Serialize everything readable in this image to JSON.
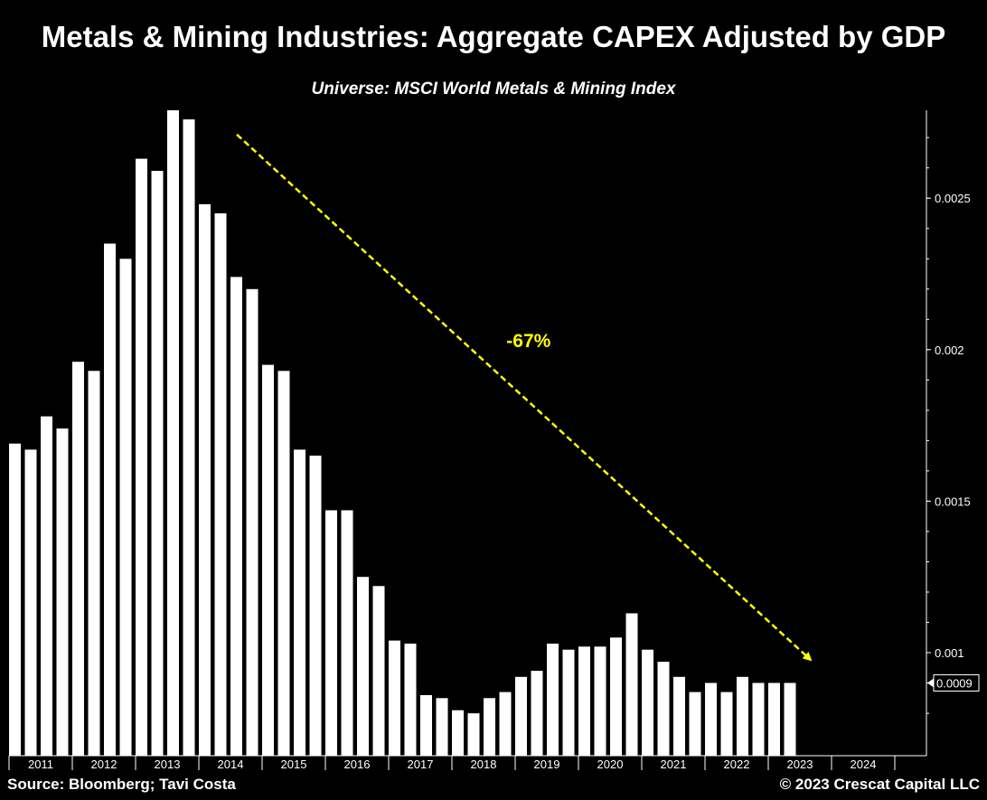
{
  "title": "Metals & Mining Industries: Aggregate CAPEX Adjusted by GDP",
  "subtitle": "Universe: MSCI World Metals & Mining Index",
  "footer": {
    "source": "Source: Bloomberg; Tavi Costa",
    "copyright": "© 2023 Crescat Capital LLC"
  },
  "colors": {
    "background": "#000000",
    "bars": "#ffffff",
    "axis": "#ffffff",
    "trend_arrow": "#ffff00",
    "annotation": "#ffff00"
  },
  "chart_data": {
    "type": "bar",
    "title": "Metals & Mining Industries: Aggregate CAPEX Adjusted by GDP",
    "subtitle": "Universe: MSCI World Metals & Mining Index",
    "frequency": "quarterly",
    "x_axis": {
      "ticks": [
        "2011",
        "2012",
        "2013",
        "2014",
        "2015",
        "2016",
        "2017",
        "2018",
        "2019",
        "2020",
        "2021",
        "2022",
        "2023",
        "2024"
      ]
    },
    "y_axis": {
      "side": "right",
      "ticks": [
        0.001,
        0.0015,
        0.002,
        0.0025
      ],
      "tick_labels": [
        "0.001",
        "0.0015",
        "0.002",
        "0.0025"
      ],
      "ylim": [
        0.00066,
        0.00279
      ]
    },
    "current_value_label": "0.0009",
    "current_value": 0.0009,
    "grid": false,
    "series": [
      {
        "values": [
          0.00169,
          0.00167,
          0.00178,
          0.00174,
          0.00196,
          0.00193,
          0.00235,
          0.0023,
          0.00263,
          0.00259,
          0.00279,
          0.00276,
          0.00248,
          0.00245,
          0.00224,
          0.0022,
          0.00195,
          0.00193,
          0.00167,
          0.00165,
          0.00147,
          0.00147,
          0.00125,
          0.00122,
          0.00104,
          0.00103,
          0.00086,
          0.00085,
          0.00081,
          0.0008,
          0.00085,
          0.00087,
          0.00092,
          0.00094,
          0.00103,
          0.00101,
          0.00102,
          0.00102,
          0.00105,
          0.00113,
          0.00101,
          0.00097,
          0.00092,
          0.00087,
          0.0009,
          0.00087,
          0.00092,
          0.0009,
          0.0009,
          0.0009
        ]
      }
    ],
    "annotations": [
      {
        "type": "trend-arrow",
        "style": "dashed",
        "label": "-67%",
        "from": {
          "year": 2014.1,
          "value": 0.00271
        },
        "to": {
          "year": 2023.15,
          "value": 0.00098
        }
      }
    ]
  }
}
